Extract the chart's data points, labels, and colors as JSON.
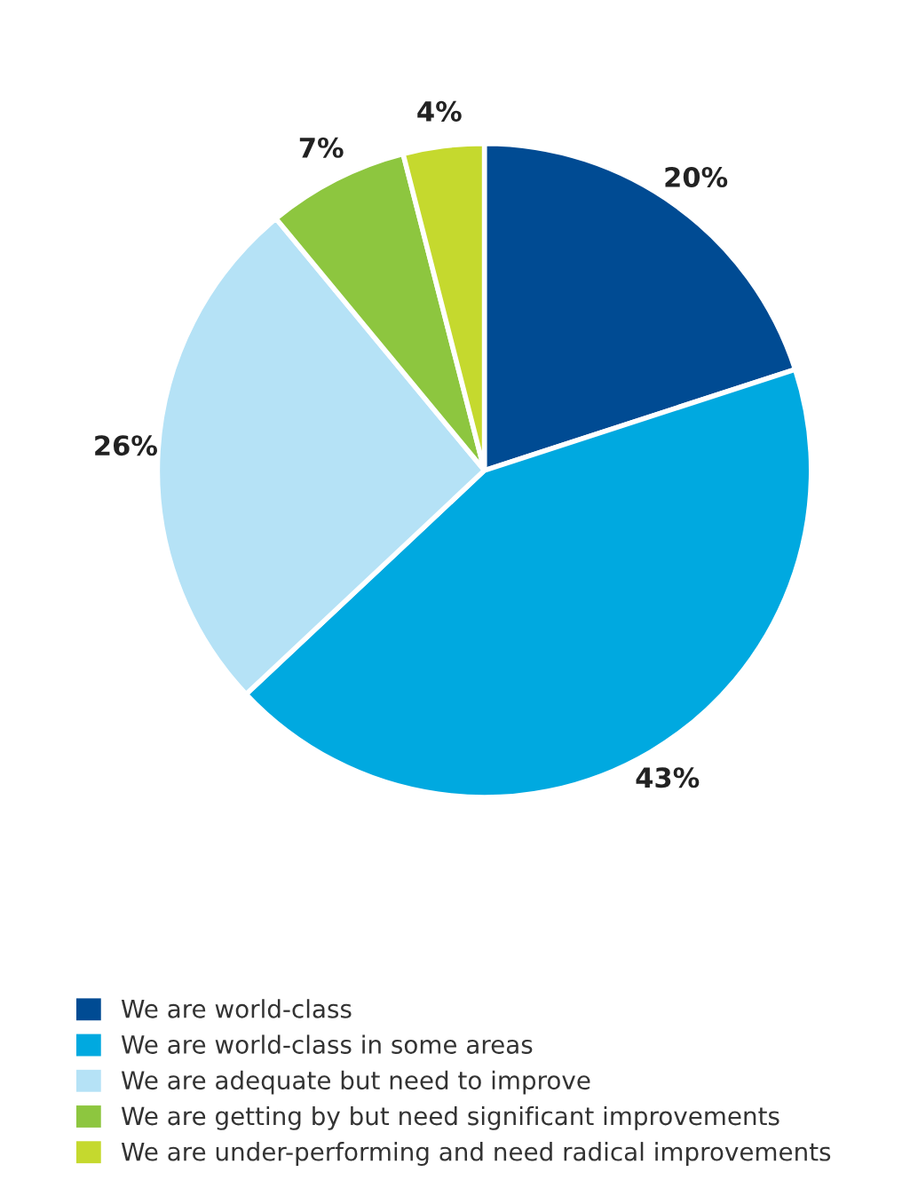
{
  "chart_data": {
    "type": "pie",
    "categories": [
      "We are world-class",
      "We are world-class in some areas",
      "We are adequate but need to improve",
      "We are getting by but need significant improvements",
      "We are under-performing and need radical improvements"
    ],
    "values": [
      20,
      43,
      26,
      7,
      4
    ],
    "colors": [
      "#004b93",
      "#00a9e0",
      "#b5e2f6",
      "#8dc63f",
      "#c5d92e"
    ],
    "value_labels": [
      "20%",
      "43%",
      "26%",
      "7%",
      "4%"
    ],
    "legend": "bottom"
  }
}
